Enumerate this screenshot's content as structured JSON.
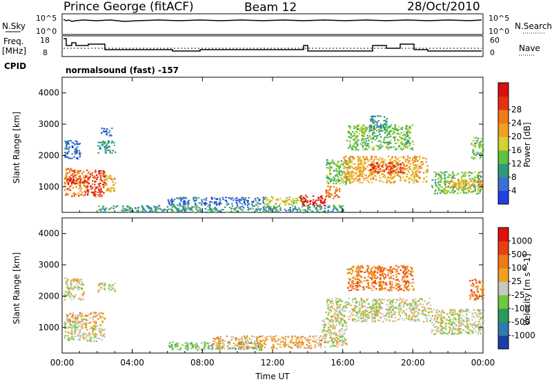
{
  "header": {
    "radar_title": "Prince George (fitACF)",
    "beam": "Beam 12",
    "date": "28/Oct/2010"
  },
  "panel_labels": {
    "nsky": "N.Sky",
    "nsky_ticks": [
      "10^5",
      "10^0"
    ],
    "freq_line1": "Freq.",
    "freq_line2": "[MHz]",
    "freq_ticks": [
      "18",
      "8"
    ],
    "nsearch": "N.Search",
    "nsearch_ticks": [
      "10^5",
      "10^0"
    ],
    "nave": "Nave",
    "nave_ticks": [
      "60",
      "0"
    ],
    "cpid": "CPID",
    "cpid_value": "normalsound (fast) -157"
  },
  "chart_data": [
    {
      "type": "heatmap",
      "name": "power",
      "ylabel": "Slant Range [km]",
      "xlabel": "Time UT",
      "x_ticks": [
        "00:00",
        "04:00",
        "08:00",
        "12:00",
        "16:00",
        "20:00",
        "00:00"
      ],
      "y_ticks": [
        "1000",
        "2000",
        "3000",
        "4000"
      ],
      "xlim_hours": [
        0,
        24
      ],
      "ylim_km": [
        180,
        4500
      ],
      "colorbar": {
        "label": "Power [dB]",
        "ticks": [
          "4",
          "8",
          "12",
          "16",
          "20",
          "24",
          "28"
        ],
        "colors": [
          "#2040e0",
          "#3b6fd6",
          "#2e9a7a",
          "#5ec23c",
          "#d8d030",
          "#f0a020",
          "#ef7a18",
          "#e83010",
          "#d81010"
        ]
      },
      "echo_regions": [
        {
          "t0": 0.1,
          "t1": 1.3,
          "r0": 700,
          "r1": 1600,
          "level": 6
        },
        {
          "t0": 0.3,
          "t1": 1.5,
          "r0": 1100,
          "r1": 1300,
          "level": 8
        },
        {
          "t0": 1.3,
          "t1": 2.4,
          "r0": 700,
          "r1": 1550,
          "level": 7
        },
        {
          "t0": 2.4,
          "t1": 3.0,
          "r0": 850,
          "r1": 1400,
          "level": 5
        },
        {
          "t0": 0.1,
          "t1": 1.0,
          "r0": 1900,
          "r1": 2500,
          "level": 1
        },
        {
          "t0": 2.0,
          "t1": 3.0,
          "r0": 2100,
          "r1": 2500,
          "level": 2
        },
        {
          "t0": 2.2,
          "t1": 2.8,
          "r0": 2650,
          "r1": 2900,
          "level": 1
        },
        {
          "t0": 6.0,
          "t1": 11.5,
          "r0": 430,
          "r1": 680,
          "level": 1
        },
        {
          "t0": 11.5,
          "t1": 13.8,
          "r0": 450,
          "r1": 700,
          "level": 4
        },
        {
          "t0": 13.5,
          "t1": 15.0,
          "r0": 400,
          "r1": 750,
          "level": 8
        },
        {
          "t0": 15.0,
          "t1": 15.8,
          "r0": 650,
          "r1": 1050,
          "level": 6
        },
        {
          "t0": 15.0,
          "t1": 16.4,
          "r0": 1100,
          "r1": 1900,
          "level": 3
        },
        {
          "t0": 16.0,
          "t1": 20.8,
          "r0": 1150,
          "r1": 2000,
          "level": 5
        },
        {
          "t0": 17.5,
          "t1": 19.5,
          "r0": 1450,
          "r1": 1800,
          "level": 7
        },
        {
          "t0": 16.2,
          "t1": 20.0,
          "r0": 2200,
          "r1": 3000,
          "level": 3
        },
        {
          "t0": 17.5,
          "t1": 18.5,
          "r0": 2800,
          "r1": 3300,
          "level": 2
        },
        {
          "t0": 21.0,
          "t1": 23.9,
          "r0": 800,
          "r1": 1500,
          "level": 3
        },
        {
          "t0": 22.0,
          "t1": 23.9,
          "r0": 950,
          "r1": 1250,
          "level": 5
        },
        {
          "t0": 23.3,
          "t1": 24.0,
          "r0": 1900,
          "r1": 2600,
          "level": 3
        },
        {
          "t0": 2.0,
          "t1": 16.0,
          "r0": 200,
          "r1": 420,
          "level": 2
        }
      ]
    },
    {
      "type": "heatmap",
      "name": "velocity",
      "ylabel": "Slant Range [km]",
      "xlabel": "Time UT",
      "x_ticks": [
        "00:00",
        "04:00",
        "08:00",
        "12:00",
        "16:00",
        "20:00",
        "00:00"
      ],
      "y_ticks": [
        "1000",
        "2000",
        "3000",
        "4000"
      ],
      "xlim_hours": [
        0,
        24
      ],
      "ylim_km": [
        180,
        4500
      ],
      "colorbar": {
        "label": "Velocity [m s^-1]",
        "ticks": [
          "1000",
          "500",
          "100",
          "25",
          "-25",
          "-100",
          "-500",
          "-1000"
        ],
        "colors": [
          "#1c3ea8",
          "#2f7ab0",
          "#2a9a5a",
          "#6cc840",
          "#c8c8c0",
          "#f0a020",
          "#ef7a18",
          "#e84010",
          "#e01010"
        ]
      },
      "echo_regions": [
        {
          "t0": 0.1,
          "t1": 1.2,
          "r0": 1900,
          "r1": 2600,
          "level": 4
        },
        {
          "t0": 0.1,
          "t1": 1.3,
          "r0": 600,
          "r1": 1300,
          "level": 4
        },
        {
          "t0": 0.2,
          "t1": 2.4,
          "r0": 1150,
          "r1": 1500,
          "level": 5
        },
        {
          "t0": 1.3,
          "t1": 2.4,
          "r0": 550,
          "r1": 1100,
          "level": 4
        },
        {
          "t0": 2.0,
          "t1": 3.0,
          "r0": 2150,
          "r1": 2450,
          "level": 4
        },
        {
          "t0": 6.0,
          "t1": 11.5,
          "r0": 300,
          "r1": 550,
          "level": 3
        },
        {
          "t0": 8.5,
          "t1": 14.8,
          "r0": 350,
          "r1": 750,
          "level": 5
        },
        {
          "t0": 14.8,
          "t1": 16.2,
          "r0": 400,
          "r1": 1300,
          "level": 4
        },
        {
          "t0": 15.0,
          "t1": 21.0,
          "r0": 1200,
          "r1": 1950,
          "level": 4
        },
        {
          "t0": 16.2,
          "t1": 20.0,
          "r0": 2200,
          "r1": 3000,
          "level": 6
        },
        {
          "t0": 21.0,
          "t1": 24.0,
          "r0": 800,
          "r1": 1600,
          "level": 4
        },
        {
          "t0": 23.2,
          "t1": 24.0,
          "r0": 1900,
          "r1": 2600,
          "level": 6
        }
      ]
    }
  ]
}
